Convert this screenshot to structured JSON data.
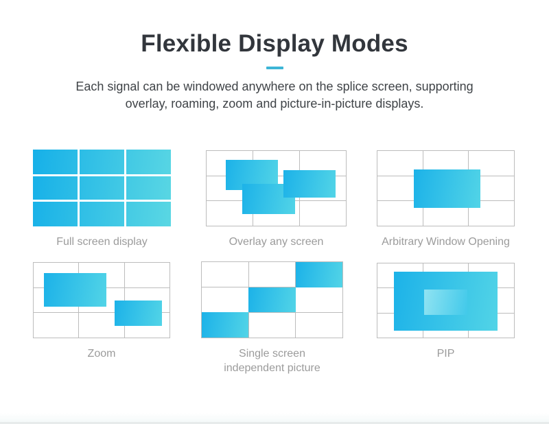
{
  "theme": {
    "accent": "#3db5d6",
    "grad_start": "#16b0e8",
    "grad_end": "#5ad7e3",
    "win_dark": "#1cb2e8",
    "win_light": "#52d4e7",
    "grid_line": "#bcbcbc",
    "caption_color": "#9b9b9b",
    "title_color": "#32363c",
    "body_color": "#3f4347"
  },
  "header": {
    "title": "Flexible Display Modes",
    "subtitle_line1": "Each signal can be windowed anywhere on the splice screen, supporting",
    "subtitle_line2": "overlay, roaming, zoom and picture-in-picture displays."
  },
  "panels": [
    {
      "label_lines": [
        "Full screen display"
      ],
      "filled": true,
      "windows": []
    },
    {
      "label_lines": [
        "Overlay any screen"
      ],
      "windows": [
        {
          "name": "overlay-window-top-left",
          "l": 13.7,
          "t": 11.7,
          "w": 37.6,
          "h": 40.5,
          "z": 2
        },
        {
          "name": "overlay-window-bottom-center",
          "l": 25.4,
          "t": 44.1,
          "w": 38.0,
          "h": 40.5,
          "z": 3
        },
        {
          "name": "overlay-window-right",
          "l": 55.1,
          "t": 26.1,
          "w": 37.6,
          "h": 36.0,
          "z": 4
        }
      ]
    },
    {
      "label_lines": [
        "Arbitrary Window Opening"
      ],
      "windows": [
        {
          "name": "arbitrary-window",
          "l": 26.4,
          "t": 25.2,
          "w": 48.8,
          "h": 51.4,
          "z": 2
        }
      ]
    },
    {
      "label_lines": [
        "Zoom"
      ],
      "windows": [
        {
          "name": "zoom-window-large",
          "l": 7.5,
          "t": 13.5,
          "w": 46.0,
          "h": 45.0,
          "z": 2
        },
        {
          "name": "zoom-window-small",
          "l": 59.5,
          "t": 50.5,
          "w": 35.0,
          "h": 34.2,
          "z": 2
        }
      ]
    },
    {
      "label_lines": [
        "Single screen",
        "independent picture"
      ],
      "windows": [
        {
          "name": "single-screen-cell-top-right",
          "l": 66.67,
          "t": 0,
          "w": 33.33,
          "h": 33.33,
          "z": 2
        },
        {
          "name": "single-screen-cell-center",
          "l": 33.33,
          "t": 33.33,
          "w": 33.33,
          "h": 33.33,
          "z": 2
        },
        {
          "name": "single-screen-cell-bottom-left",
          "l": 0,
          "t": 66.67,
          "w": 33.33,
          "h": 33.33,
          "z": 2
        }
      ]
    },
    {
      "label_lines": [
        "PIP"
      ],
      "windows": [
        {
          "name": "pip-outer-window",
          "l": 11.9,
          "t": 10.9,
          "w": 76.1,
          "h": 80.0,
          "z": 2,
          "inner": {
            "l": 29.4,
            "t": 30.7,
            "w": 41.2,
            "h": 42.0
          }
        }
      ]
    }
  ]
}
